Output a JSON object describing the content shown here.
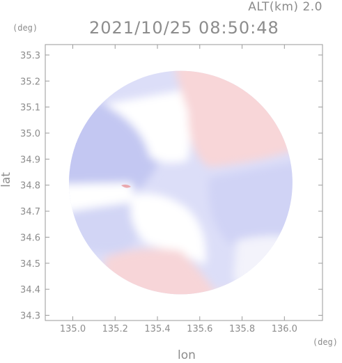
{
  "header": {
    "altitude": "ALT(km) 2.0",
    "timestamp": "2021/10/25 08:50:48"
  },
  "units": {
    "y": "(deg)",
    "x": "(deg)"
  },
  "chart_data": {
    "type": "heatmap",
    "title": "2021/10/25 08:50:48",
    "subtitle": "ALT(km) 2.0",
    "xlabel": "lon",
    "ylabel": "lat",
    "xlim": [
      134.87,
      136.18
    ],
    "ylim": [
      34.28,
      35.34
    ],
    "xticks": [
      "135.0",
      "135.2",
      "135.4",
      "135.6",
      "135.8",
      "136.0"
    ],
    "xtick_values": [
      135.0,
      135.2,
      135.4,
      135.6,
      135.8,
      136.0
    ],
    "yticks": [
      "34.3",
      "34.4",
      "34.5",
      "34.6",
      "34.7",
      "34.8",
      "34.9",
      "35.0",
      "35.1",
      "35.2",
      "35.3"
    ],
    "ytick_values": [
      34.3,
      34.4,
      34.5,
      34.6,
      34.7,
      34.8,
      34.9,
      35.0,
      35.1,
      35.2,
      35.3
    ],
    "grid": false,
    "colors": {
      "positive": "#f4c9cc",
      "negative": "#cdd0f4",
      "strong_negative": "#8f94e6",
      "frame": "#9a9a9a"
    },
    "range_center": [
      135.51,
      34.81
    ],
    "range_radius_deg": 0.53
  }
}
